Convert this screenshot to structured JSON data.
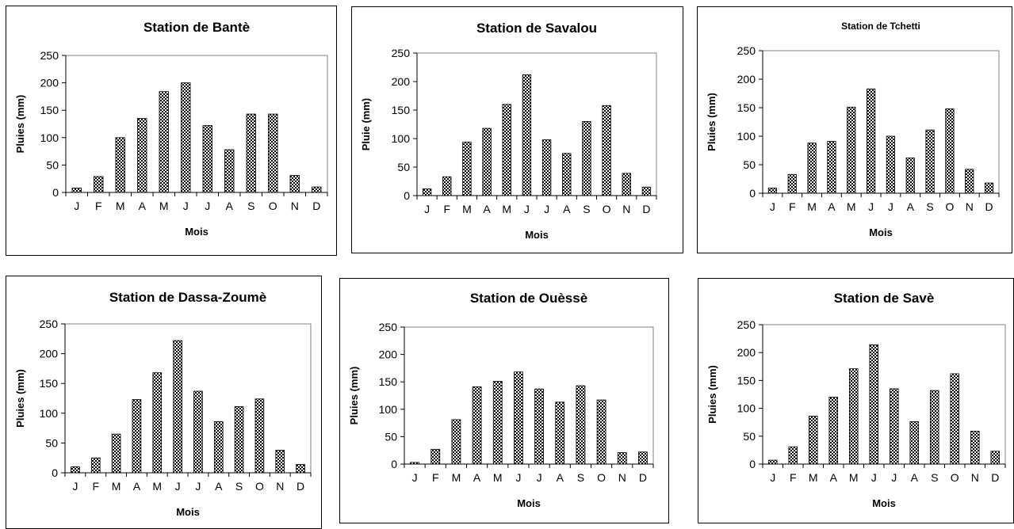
{
  "pattern_color": "#000000",
  "chart_data": [
    {
      "type": "bar",
      "title": "Station de Bantè",
      "xlabel": "Mois",
      "ylabel": "Pluies (mm)",
      "categories": [
        "J",
        "F",
        "M",
        "A",
        "M",
        "J",
        "J",
        "A",
        "S",
        "O",
        "N",
        "D"
      ],
      "values": [
        8,
        29,
        100,
        135,
        184,
        200,
        122,
        78,
        143,
        143,
        31,
        10
      ],
      "ylim": [
        0,
        250
      ],
      "yticks": [
        "0",
        "50",
        "100",
        "150",
        "200",
        "250"
      ],
      "grid": false
    },
    {
      "type": "bar",
      "title": "Station de Savalou",
      "xlabel": "Mois",
      "ylabel": "Pluie (mm)",
      "categories": [
        "J",
        "F",
        "M",
        "A",
        "M",
        "J",
        "J",
        "A",
        "S",
        "O",
        "N",
        "D"
      ],
      "values": [
        12,
        33,
        94,
        118,
        160,
        212,
        98,
        74,
        130,
        158,
        39,
        15
      ],
      "ylim": [
        0,
        250
      ],
      "yticks": [
        "0",
        "50",
        "100",
        "150",
        "200",
        "250"
      ],
      "grid": false
    },
    {
      "type": "bar",
      "title": "Station de Tchetti",
      "xlabel": "Mois",
      "ylabel": "Pluies (mm)",
      "categories": [
        "J",
        "F",
        "M",
        "A",
        "M",
        "J",
        "J",
        "A",
        "S",
        "O",
        "N",
        "D"
      ],
      "values": [
        9,
        33,
        88,
        91,
        151,
        183,
        100,
        62,
        111,
        148,
        42,
        18
      ],
      "ylim": [
        0,
        250
      ],
      "yticks": [
        "0",
        "50",
        "100",
        "150",
        "200",
        "250"
      ],
      "grid": false
    },
    {
      "type": "bar",
      "title": "Station de Dassa-Zoumè",
      "xlabel": "Mois",
      "ylabel": "Pluies (mm)",
      "categories": [
        "J",
        "F",
        "M",
        "A",
        "M",
        "J",
        "J",
        "A",
        "S",
        "O",
        "N",
        "D"
      ],
      "values": [
        10,
        25,
        65,
        123,
        168,
        222,
        137,
        86,
        111,
        124,
        38,
        14
      ],
      "ylim": [
        0,
        250
      ],
      "yticks": [
        "0",
        "50",
        "100",
        "150",
        "200",
        "250"
      ],
      "grid": false
    },
    {
      "type": "bar",
      "title": "Station de Ouèssè",
      "xlabel": "Mois",
      "ylabel": "Pluies (mm)",
      "categories": [
        "J",
        "F",
        "M",
        "A",
        "M",
        "J",
        "J",
        "A",
        "S",
        "O",
        "N",
        "D"
      ],
      "values": [
        3,
        27,
        81,
        141,
        151,
        168,
        137,
        113,
        143,
        117,
        21,
        22
      ],
      "ylim": [
        0,
        250
      ],
      "yticks": [
        "0",
        "50",
        "100",
        "150",
        "200",
        "250"
      ],
      "grid": false
    },
    {
      "type": "bar",
      "title": "Station de Savè",
      "xlabel": "Mois",
      "ylabel": "Pluies (mm)",
      "categories": [
        "J",
        "F",
        "M",
        "A",
        "M",
        "J",
        "J",
        "A",
        "S",
        "O",
        "N",
        "D"
      ],
      "values": [
        7,
        31,
        86,
        120,
        171,
        214,
        135,
        76,
        132,
        162,
        59,
        23
      ],
      "ylim": [
        0,
        250
      ],
      "yticks": [
        "0",
        "50",
        "100",
        "150",
        "200",
        "250"
      ],
      "grid": false
    }
  ]
}
